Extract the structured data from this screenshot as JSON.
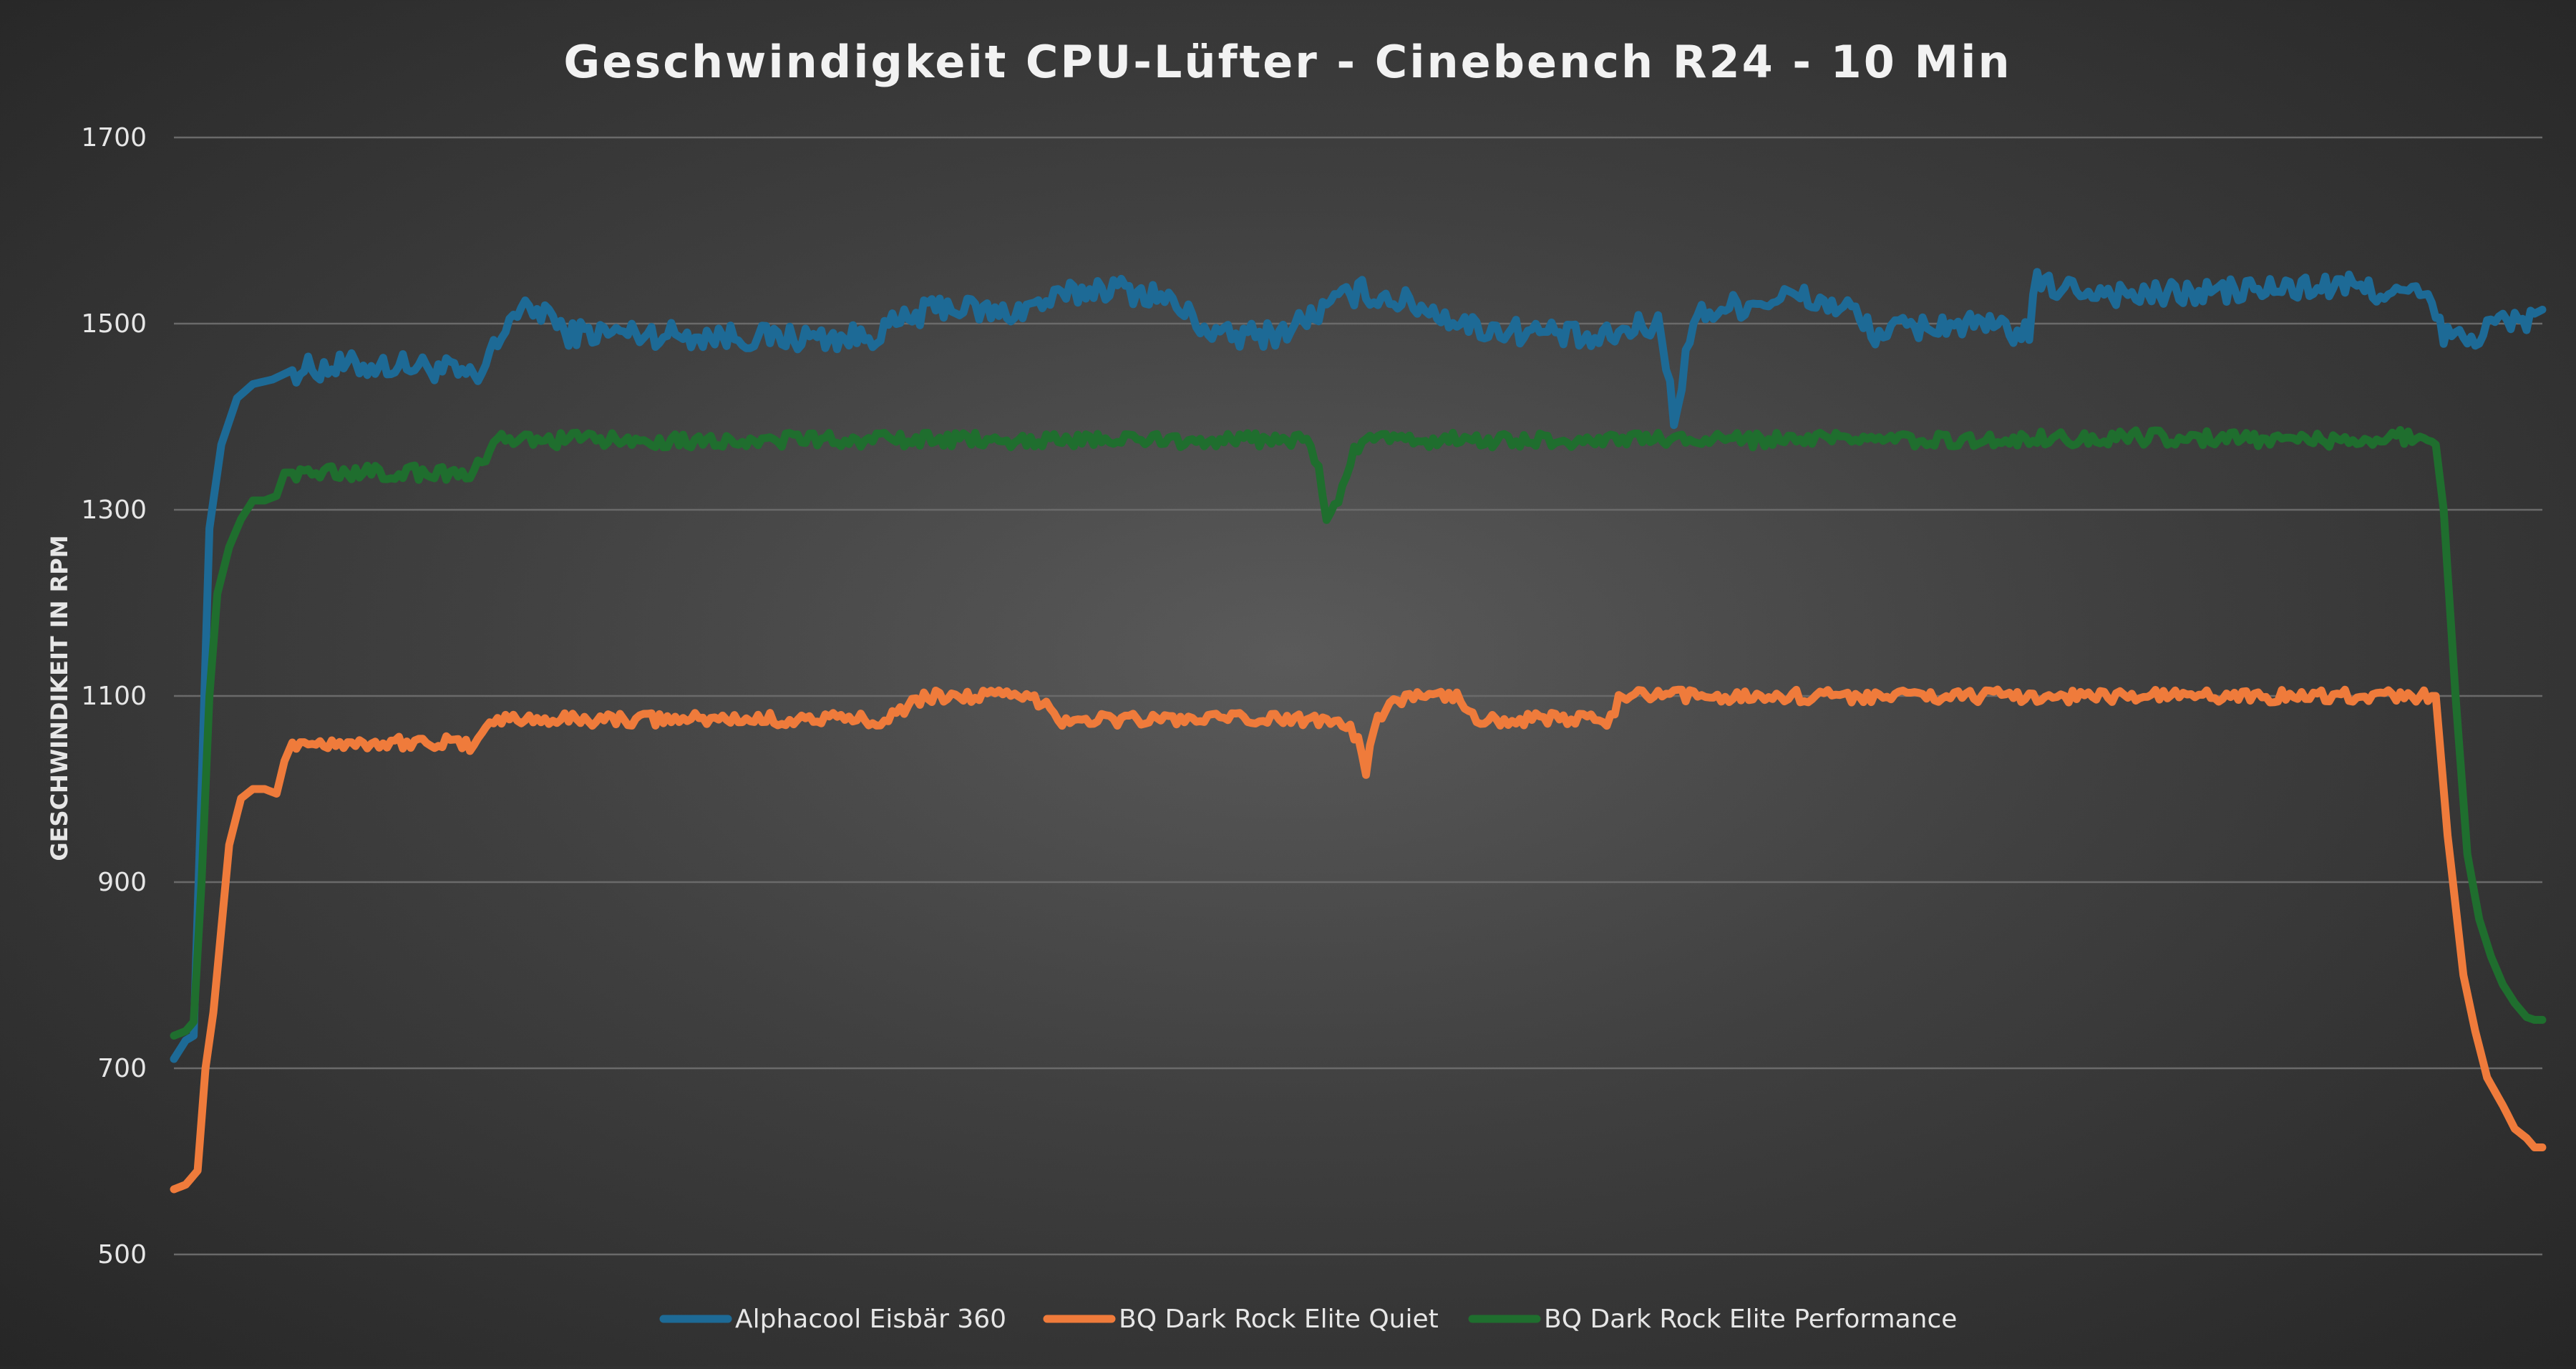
{
  "chart_data": {
    "type": "line",
    "title": "Geschwindigkeit CPU-Lüfter - Cinebench R24 - 10 Min",
    "ylabel": "GESCHWINDIKEIT IN RPM",
    "xlabel": "",
    "ylim": [
      500,
      1700
    ],
    "yticks": [
      "500",
      "700",
      "900",
      "1100",
      "1300",
      "1500",
      "1700"
    ],
    "grid": true,
    "legend_position": "bottom",
    "x_points": 600,
    "series": [
      {
        "name": "Alphacool Eisbär 360",
        "color": "#1d6a96",
        "keypoints": [
          [
            0,
            710
          ],
          [
            3,
            730
          ],
          [
            5,
            735
          ],
          [
            7,
            1000
          ],
          [
            9,
            1280
          ],
          [
            12,
            1370
          ],
          [
            16,
            1420
          ],
          [
            20,
            1435
          ],
          [
            25,
            1440
          ],
          [
            30,
            1450
          ],
          [
            45,
            1455
          ],
          [
            60,
            1455
          ],
          [
            70,
            1450
          ],
          [
            75,
            1440
          ],
          [
            78,
            1440
          ],
          [
            80,
            1470
          ],
          [
            82,
            1475
          ],
          [
            85,
            1510
          ],
          [
            95,
            1515
          ],
          [
            98,
            1490
          ],
          [
            115,
            1490
          ],
          [
            150,
            1485
          ],
          [
            175,
            1485
          ],
          [
            195,
            1520
          ],
          [
            210,
            1510
          ],
          [
            235,
            1540
          ],
          [
            250,
            1530
          ],
          [
            265,
            1485
          ],
          [
            280,
            1490
          ],
          [
            300,
            1535
          ],
          [
            315,
            1520
          ],
          [
            330,
            1495
          ],
          [
            350,
            1490
          ],
          [
            360,
            1480
          ],
          [
            370,
            1495
          ],
          [
            376,
            1500
          ],
          [
            378,
            1460
          ],
          [
            380,
            1400
          ],
          [
            382,
            1440
          ],
          [
            385,
            1505
          ],
          [
            390,
            1515
          ],
          [
            410,
            1530
          ],
          [
            425,
            1515
          ],
          [
            430,
            1490
          ],
          [
            450,
            1500
          ],
          [
            470,
            1490
          ],
          [
            470,
            1490
          ],
          [
            472,
            1545
          ],
          [
            475,
            1540
          ],
          [
            500,
            1530
          ],
          [
            520,
            1535
          ],
          [
            550,
            1540
          ],
          [
            570,
            1530
          ],
          [
            575,
            1490
          ],
          [
            580,
            1480
          ],
          [
            590,
            1505
          ],
          [
            593,
            1500
          ],
          [
            600,
            1515
          ]
        ]
      },
      {
        "name": "BQ Dark Rock Elite Quiet",
        "color": "#ef7b3b",
        "keypoints": [
          [
            0,
            570
          ],
          [
            3,
            575
          ],
          [
            6,
            590
          ],
          [
            8,
            700
          ],
          [
            10,
            760
          ],
          [
            12,
            850
          ],
          [
            14,
            940
          ],
          [
            17,
            990
          ],
          [
            20,
            1000
          ],
          [
            23,
            1000
          ],
          [
            26,
            995
          ],
          [
            28,
            1030
          ],
          [
            30,
            1050
          ],
          [
            35,
            1050
          ],
          [
            70,
            1050
          ],
          [
            75,
            1045
          ],
          [
            78,
            1065
          ],
          [
            80,
            1070
          ],
          [
            83,
            1075
          ],
          [
            100,
            1075
          ],
          [
            140,
            1075
          ],
          [
            175,
            1075
          ],
          [
            180,
            1075
          ],
          [
            188,
            1095
          ],
          [
            193,
            1100
          ],
          [
            200,
            1100
          ],
          [
            210,
            1100
          ],
          [
            220,
            1095
          ],
          [
            225,
            1075
          ],
          [
            245,
            1075
          ],
          [
            270,
            1075
          ],
          [
            295,
            1075
          ],
          [
            298,
            1070
          ],
          [
            300,
            1050
          ],
          [
            302,
            1015
          ],
          [
            304,
            1065
          ],
          [
            308,
            1095
          ],
          [
            315,
            1100
          ],
          [
            320,
            1100
          ],
          [
            325,
            1100
          ],
          [
            330,
            1075
          ],
          [
            340,
            1075
          ],
          [
            360,
            1075
          ],
          [
            363,
            1070
          ],
          [
            366,
            1095
          ],
          [
            370,
            1100
          ],
          [
            400,
            1100
          ],
          [
            450,
            1100
          ],
          [
            500,
            1100
          ],
          [
            570,
            1100
          ],
          [
            573,
            1100
          ],
          [
            576,
            950
          ],
          [
            580,
            800
          ],
          [
            583,
            740
          ],
          [
            586,
            690
          ],
          [
            590,
            660
          ],
          [
            593,
            635
          ],
          [
            596,
            625
          ],
          [
            598,
            615
          ],
          [
            600,
            615
          ]
        ]
      },
      {
        "name": "BQ Dark Rock Elite Performance",
        "color": "#1f6e2e",
        "keypoints": [
          [
            0,
            735
          ],
          [
            3,
            740
          ],
          [
            5,
            750
          ],
          [
            7,
            900
          ],
          [
            9,
            1100
          ],
          [
            11,
            1210
          ],
          [
            14,
            1260
          ],
          [
            17,
            1290
          ],
          [
            20,
            1310
          ],
          [
            23,
            1310
          ],
          [
            26,
            1315
          ],
          [
            28,
            1340
          ],
          [
            30,
            1340
          ],
          [
            45,
            1340
          ],
          [
            70,
            1340
          ],
          [
            75,
            1335
          ],
          [
            78,
            1350
          ],
          [
            80,
            1360
          ],
          [
            83,
            1375
          ],
          [
            100,
            1375
          ],
          [
            150,
            1375
          ],
          [
            200,
            1375
          ],
          [
            250,
            1375
          ],
          [
            285,
            1375
          ],
          [
            288,
            1370
          ],
          [
            290,
            1340
          ],
          [
            292,
            1290
          ],
          [
            294,
            1300
          ],
          [
            296,
            1330
          ],
          [
            298,
            1350
          ],
          [
            300,
            1370
          ],
          [
            305,
            1375
          ],
          [
            350,
            1375
          ],
          [
            400,
            1375
          ],
          [
            450,
            1375
          ],
          [
            500,
            1378
          ],
          [
            550,
            1375
          ],
          [
            570,
            1380
          ],
          [
            573,
            1370
          ],
          [
            575,
            1300
          ],
          [
            578,
            1100
          ],
          [
            581,
            930
          ],
          [
            584,
            860
          ],
          [
            587,
            820
          ],
          [
            590,
            790
          ],
          [
            593,
            770
          ],
          [
            596,
            755
          ],
          [
            598,
            752
          ],
          [
            600,
            752
          ]
        ]
      }
    ]
  }
}
